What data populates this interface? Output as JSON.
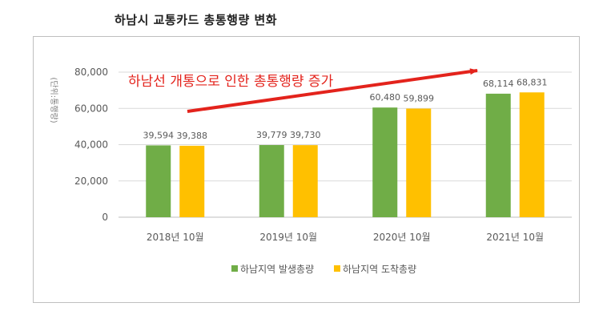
{
  "page_title": "하남시 교통카드 총통행량 변화",
  "chart_data": {
    "type": "bar",
    "title": "",
    "ylabel": "(단위:통행량)",
    "xlabel": "",
    "categories": [
      "2018년 10월",
      "2019년 10월",
      "2020년 10월",
      "2021년 10월"
    ],
    "series": [
      {
        "name": "하남지역 발생총량",
        "color": "#70ad47",
        "values": [
          39594,
          39779,
          60480,
          68114
        ],
        "labels": [
          "39,594",
          "39,779",
          "60,480",
          "68,114"
        ]
      },
      {
        "name": "하남지역 도착총량",
        "color": "#ffc000",
        "values": [
          39388,
          39730,
          59899,
          68831
        ],
        "labels": [
          "39,388",
          "39,730",
          "59,899",
          "68,831"
        ]
      }
    ],
    "ylim": [
      0,
      80000
    ],
    "yticks": [
      0,
      20000,
      40000,
      60000,
      80000
    ],
    "ytick_labels": [
      "0",
      "20,000",
      "40,000",
      "60,000",
      "80,000"
    ],
    "grid": true,
    "legend_position": "bottom",
    "annotation": {
      "text": "하남선 개통으로 인한 총통행량 증가",
      "color": "#e3231c"
    }
  }
}
